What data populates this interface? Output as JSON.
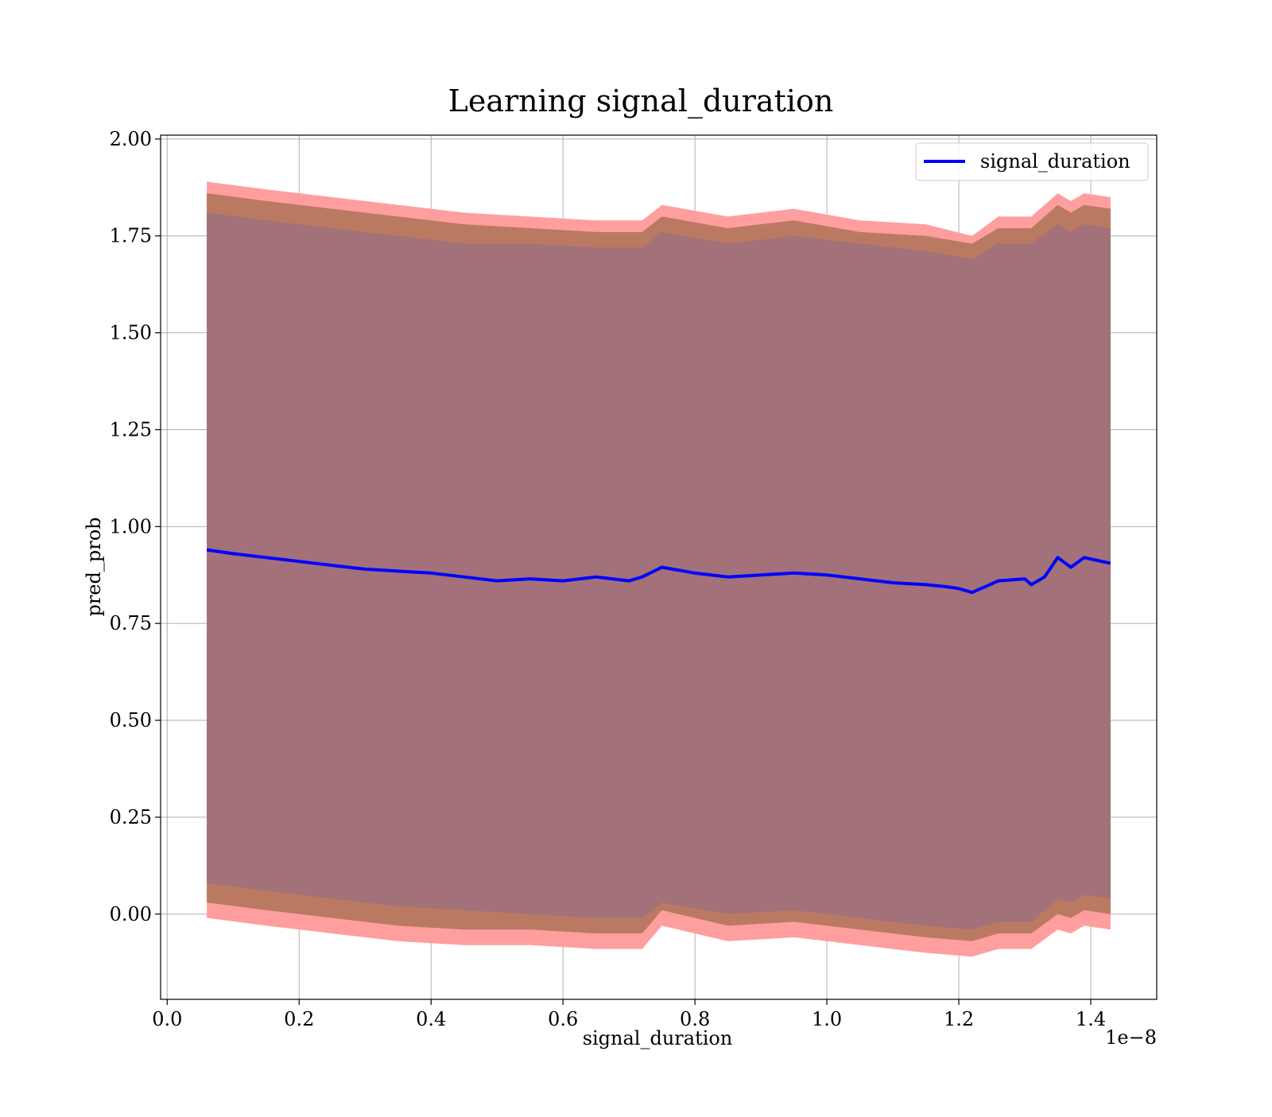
{
  "chart_data": {
    "type": "line",
    "title": "Learning signal_duration",
    "xlabel": "signal_duration",
    "ylabel": "pred_prob",
    "x_offset_label": "1e−8",
    "xlim": [
      -0.01,
      1.5
    ],
    "ylim": [
      -0.22,
      2.01
    ],
    "xticks": [
      0.0,
      0.2,
      0.4,
      0.6,
      0.8,
      1.0,
      1.2,
      1.4
    ],
    "xtick_labels": [
      "0.0",
      "0.2",
      "0.4",
      "0.6",
      "0.8",
      "1.0",
      "1.2",
      "1.4"
    ],
    "yticks": [
      0.0,
      0.25,
      0.5,
      0.75,
      1.0,
      1.25,
      1.5,
      1.75,
      2.0
    ],
    "ytick_labels": [
      "0.00",
      "0.25",
      "0.50",
      "0.75",
      "1.00",
      "1.25",
      "1.50",
      "1.75",
      "2.00"
    ],
    "grid": true,
    "legend_position": "top-right",
    "colors": {
      "line": "#0000ff",
      "outer_band": "#ff9999",
      "middle_band": "#b5785e",
      "inner_band": "#a0717a",
      "grid": "#b0b0b0"
    },
    "series": [
      {
        "name": "signal_duration",
        "x": [
          0.06,
          0.1,
          0.15,
          0.2,
          0.25,
          0.3,
          0.35,
          0.4,
          0.45,
          0.5,
          0.55,
          0.6,
          0.65,
          0.7,
          0.72,
          0.75,
          0.8,
          0.85,
          0.9,
          0.95,
          1.0,
          1.05,
          1.1,
          1.15,
          1.18,
          1.2,
          1.22,
          1.24,
          1.26,
          1.3,
          1.31,
          1.33,
          1.35,
          1.37,
          1.39,
          1.43
        ],
        "y": [
          0.94,
          0.93,
          0.92,
          0.91,
          0.9,
          0.89,
          0.885,
          0.88,
          0.87,
          0.86,
          0.865,
          0.86,
          0.87,
          0.86,
          0.87,
          0.895,
          0.88,
          0.87,
          0.875,
          0.88,
          0.875,
          0.865,
          0.855,
          0.85,
          0.845,
          0.84,
          0.83,
          0.845,
          0.86,
          0.865,
          0.85,
          0.87,
          0.92,
          0.895,
          0.92,
          0.905
        ]
      }
    ],
    "bands": [
      {
        "role": "outer",
        "x": [
          0.06,
          0.15,
          0.25,
          0.35,
          0.45,
          0.55,
          0.65,
          0.72,
          0.75,
          0.85,
          0.95,
          1.05,
          1.15,
          1.22,
          1.26,
          1.31,
          1.35,
          1.37,
          1.39,
          1.43
        ],
        "upper": [
          1.89,
          1.87,
          1.85,
          1.83,
          1.81,
          1.8,
          1.79,
          1.79,
          1.83,
          1.8,
          1.82,
          1.79,
          1.78,
          1.75,
          1.8,
          1.8,
          1.86,
          1.84,
          1.86,
          1.85
        ],
        "lower": [
          -0.01,
          -0.03,
          -0.05,
          -0.07,
          -0.08,
          -0.08,
          -0.09,
          -0.09,
          -0.03,
          -0.07,
          -0.06,
          -0.08,
          -0.1,
          -0.11,
          -0.09,
          -0.09,
          -0.04,
          -0.05,
          -0.03,
          -0.04
        ]
      },
      {
        "role": "middle",
        "x": [
          0.06,
          0.15,
          0.25,
          0.35,
          0.45,
          0.55,
          0.65,
          0.72,
          0.75,
          0.85,
          0.95,
          1.05,
          1.15,
          1.22,
          1.26,
          1.31,
          1.35,
          1.37,
          1.39,
          1.43
        ],
        "upper": [
          1.86,
          1.84,
          1.82,
          1.8,
          1.78,
          1.77,
          1.76,
          1.76,
          1.8,
          1.77,
          1.79,
          1.76,
          1.75,
          1.73,
          1.77,
          1.77,
          1.83,
          1.81,
          1.83,
          1.82
        ],
        "lower": [
          0.03,
          0.01,
          -0.01,
          -0.03,
          -0.04,
          -0.04,
          -0.05,
          -0.05,
          0.01,
          -0.03,
          -0.02,
          -0.04,
          -0.06,
          -0.07,
          -0.05,
          -0.05,
          0.0,
          -0.01,
          0.01,
          0.0
        ]
      },
      {
        "role": "inner",
        "x": [
          0.06,
          0.15,
          0.25,
          0.35,
          0.45,
          0.55,
          0.65,
          0.72,
          0.75,
          0.85,
          0.95,
          1.05,
          1.15,
          1.22,
          1.26,
          1.31,
          1.35,
          1.37,
          1.39,
          1.43
        ],
        "upper": [
          1.81,
          1.79,
          1.77,
          1.75,
          1.73,
          1.73,
          1.72,
          1.72,
          1.76,
          1.73,
          1.75,
          1.73,
          1.71,
          1.69,
          1.73,
          1.73,
          1.78,
          1.76,
          1.78,
          1.77
        ],
        "lower": [
          0.08,
          0.06,
          0.04,
          0.02,
          0.01,
          0.0,
          -0.01,
          -0.01,
          0.03,
          0.0,
          0.01,
          -0.01,
          -0.03,
          -0.04,
          -0.02,
          -0.02,
          0.04,
          0.03,
          0.05,
          0.04
        ]
      }
    ]
  }
}
